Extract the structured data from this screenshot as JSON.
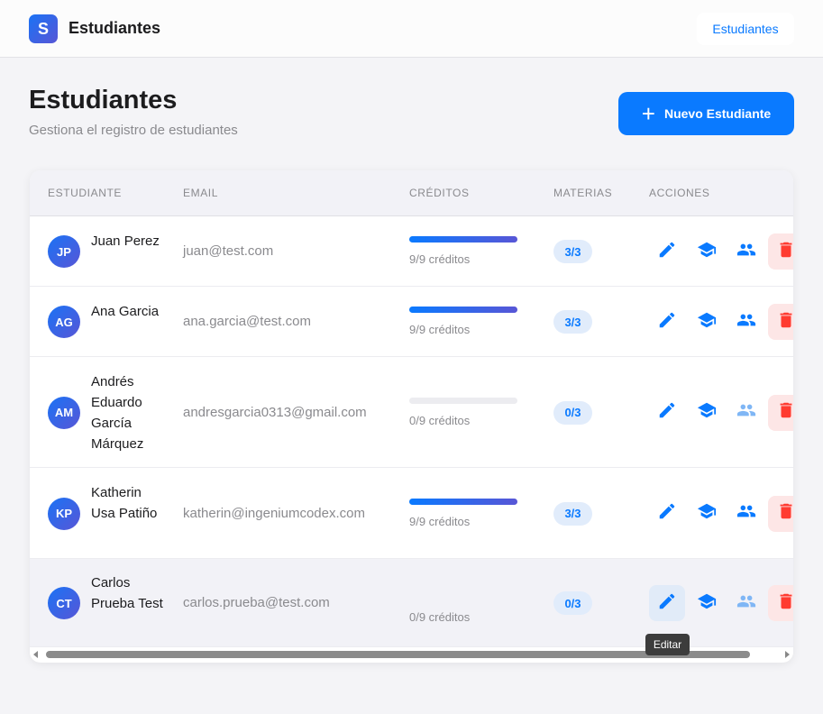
{
  "app": {
    "logo_letter": "S",
    "title": "Estudiantes",
    "nav_label": "Estudiantes"
  },
  "page": {
    "title": "Estudiantes",
    "subtitle": "Gestiona el registro de estudiantes",
    "new_button": "Nuevo Estudiante"
  },
  "table": {
    "headers": [
      "ESTUDIANTE",
      "EMAIL",
      "CRÉDITOS",
      "MATERIAS",
      "ACCIONES"
    ],
    "rows": [
      {
        "initials": "JP",
        "name": "Juan Perez",
        "email": "juan@test.com",
        "credits_text": "9/9 créditos",
        "credits_fraction": 1,
        "materias": "3/3",
        "groups_enabled": true
      },
      {
        "initials": "AG",
        "name": "Ana Garcia",
        "email": "ana.garcia@test.com",
        "credits_text": "9/9 créditos",
        "credits_fraction": 1,
        "materias": "3/3",
        "groups_enabled": true
      },
      {
        "initials": "AM",
        "name": "Andrés Eduardo García Márquez",
        "email": "andresgarcia0313@gmail.com",
        "credits_text": "0/9 créditos",
        "credits_fraction": 0,
        "materias": "0/3",
        "groups_enabled": false
      },
      {
        "initials": "KP",
        "name": "Katherin Usa Patiño",
        "email": "katherin@ingeniumcodex.com",
        "credits_text": "9/9 créditos",
        "credits_fraction": 1,
        "materias": "3/3",
        "groups_enabled": true
      },
      {
        "initials": "CT",
        "name": "Carlos Prueba Test",
        "email": "carlos.prueba@test.com",
        "credits_text": "0/9 créditos",
        "credits_fraction": 0,
        "materias": "0/3",
        "groups_enabled": false
      }
    ]
  },
  "tooltip": "Editar",
  "colors": {
    "accent": "#0a7aff",
    "danger": "#ff3b30",
    "disabled_icon": "#7fb6f5"
  }
}
